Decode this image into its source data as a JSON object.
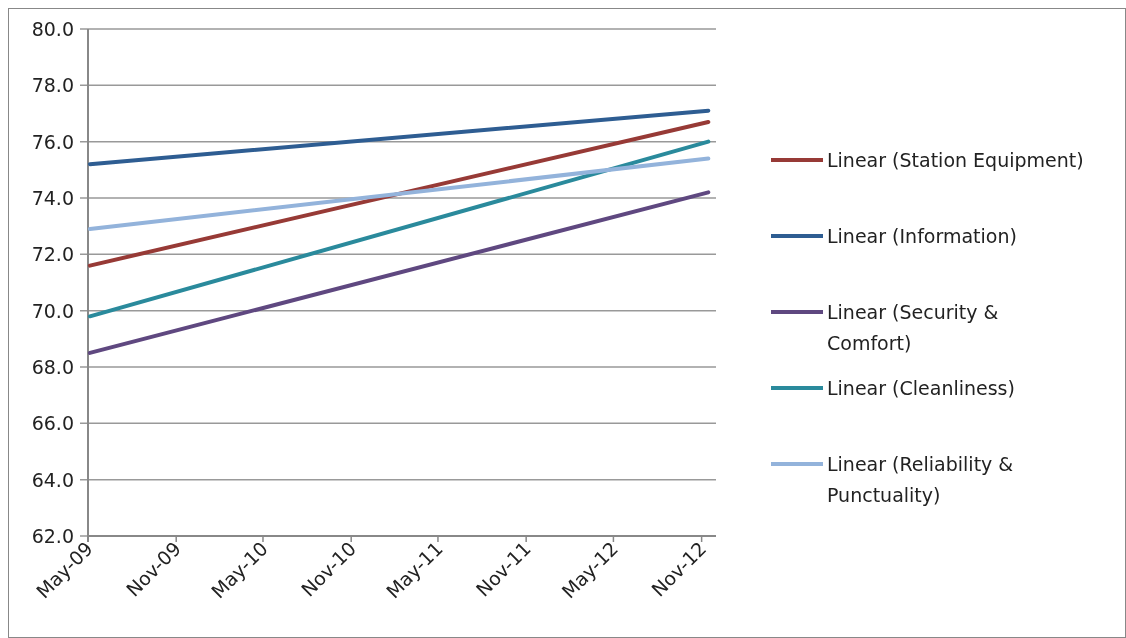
{
  "chart_data": {
    "type": "line",
    "xlim": [
      "2009-05",
      "2012-12"
    ],
    "xticks": [
      {
        "value": "2009-05",
        "label": "May-09"
      },
      {
        "value": "2009-11",
        "label": "Nov-09"
      },
      {
        "value": "2010-05",
        "label": "May-10"
      },
      {
        "value": "2010-11",
        "label": "Nov-10"
      },
      {
        "value": "2011-05",
        "label": "May-11"
      },
      {
        "value": "2011-11",
        "label": "Nov-11"
      },
      {
        "value": "2012-05",
        "label": "May-12"
      },
      {
        "value": "2012-11",
        "label": "Nov-12"
      }
    ],
    "ylim": [
      62,
      80
    ],
    "yticks": [
      {
        "value": 62,
        "label": "62.0"
      },
      {
        "value": 64,
        "label": "64.0"
      },
      {
        "value": 66,
        "label": "66.0"
      },
      {
        "value": 68,
        "label": "68.0"
      },
      {
        "value": 70,
        "label": "70.0"
      },
      {
        "value": 72,
        "label": "72.0"
      },
      {
        "value": 74,
        "label": "74.0"
      },
      {
        "value": 76,
        "label": "76.0"
      },
      {
        "value": 78,
        "label": "78.0"
      },
      {
        "value": 80,
        "label": "80.0"
      }
    ],
    "grid": "y",
    "legend": "right",
    "marker": "none",
    "line_style": "solid",
    "series": [
      {
        "name": "Linear (Station Equipment)",
        "color": "#973a36",
        "x": [
          "2009-05-05",
          "2012-11-15"
        ],
        "values": [
          71.6,
          76.7
        ]
      },
      {
        "name": "Linear (Information)",
        "color": "#2e5d92",
        "x": [
          "2009-05-05",
          "2012-11-15"
        ],
        "values": [
          75.2,
          77.1
        ]
      },
      {
        "name": "Linear (Security & Comfort)",
        "color": "#5f4880",
        "x": [
          "2009-05-05",
          "2012-11-15"
        ],
        "values": [
          68.5,
          74.2
        ]
      },
      {
        "name": "Linear (Cleanliness)",
        "color": "#2a8a9c",
        "x": [
          "2009-05-05",
          "2012-11-15"
        ],
        "values": [
          69.8,
          76.0
        ]
      },
      {
        "name": "Linear (Reliability & Punctuality)",
        "color": "#93b3db",
        "x": [
          "2009-05-05",
          "2012-11-15"
        ],
        "values": [
          72.9,
          75.4
        ]
      }
    ]
  }
}
